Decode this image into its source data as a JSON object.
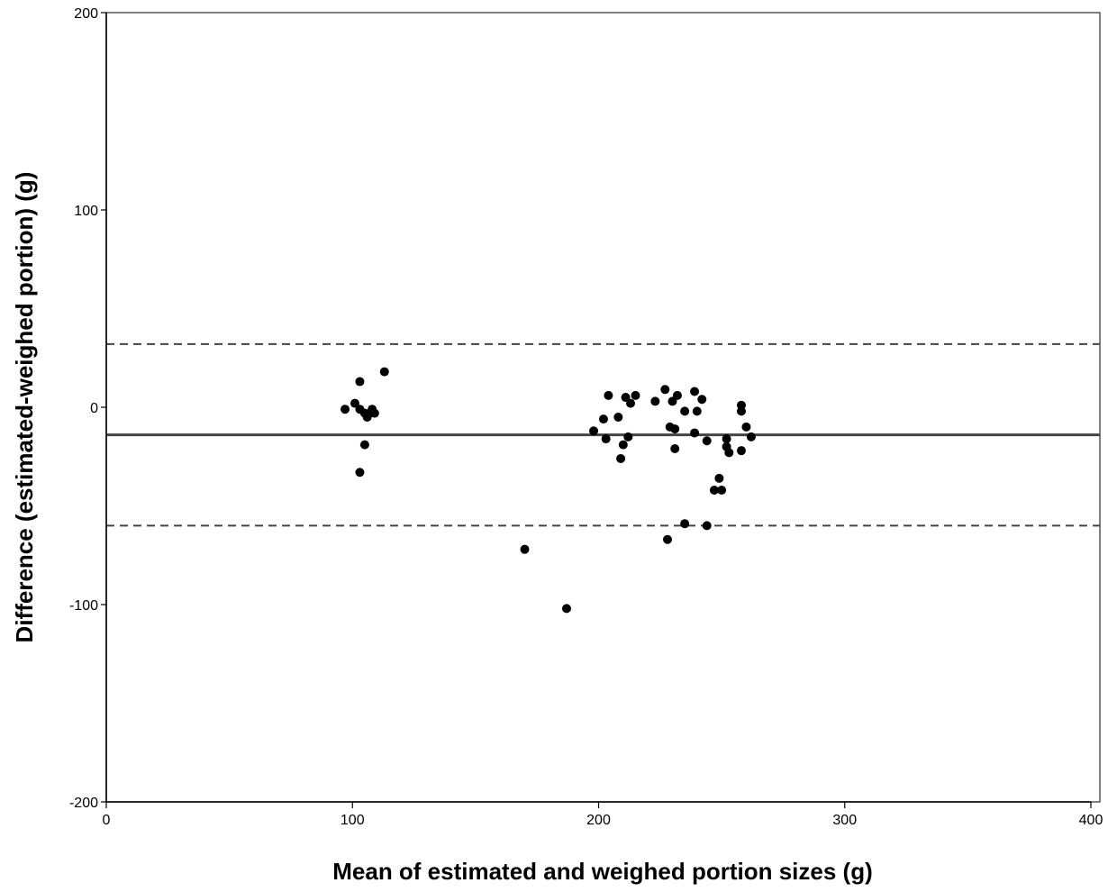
{
  "chart_data": {
    "type": "scatter",
    "title": "",
    "xlabel": "Mean of estimated and weighed portion sizes (g)",
    "ylabel": "Difference (estimated-weighed portion) (g)",
    "xlim": [
      0,
      400
    ],
    "ylim": [
      -200,
      200
    ],
    "x_ticks": [
      "0",
      "100",
      "200",
      "300",
      "400"
    ],
    "y_ticks": [
      "-200",
      "-100",
      "0",
      "100",
      "200"
    ],
    "x_tick_values": [
      0,
      100,
      200,
      300,
      400
    ],
    "y_tick_values": [
      -200,
      -100,
      0,
      100,
      200
    ],
    "grid": false,
    "legend": "none",
    "colors": {
      "points": "#000000",
      "lines": "#444444",
      "axes": "#000000",
      "frame": "#555555"
    },
    "reference_lines": [
      {
        "kind": "mean",
        "style": "solid",
        "y": -14
      },
      {
        "kind": "upper-limit-of-agreement",
        "style": "dashed",
        "y": 32
      },
      {
        "kind": "lower-limit-of-agreement",
        "style": "dashed",
        "y": -60
      }
    ],
    "points": [
      {
        "x": 97,
        "y": -1
      },
      {
        "x": 101,
        "y": 2
      },
      {
        "x": 103,
        "y": 13
      },
      {
        "x": 103,
        "y": -1
      },
      {
        "x": 105,
        "y": -3
      },
      {
        "x": 106,
        "y": -5
      },
      {
        "x": 107,
        "y": -3
      },
      {
        "x": 108,
        "y": -1
      },
      {
        "x": 109,
        "y": -3
      },
      {
        "x": 105,
        "y": -19
      },
      {
        "x": 103,
        "y": -33
      },
      {
        "x": 113,
        "y": 18
      },
      {
        "x": 170,
        "y": -72
      },
      {
        "x": 187,
        "y": -102
      },
      {
        "x": 198,
        "y": -12
      },
      {
        "x": 202,
        "y": -6
      },
      {
        "x": 203,
        "y": -16
      },
      {
        "x": 204,
        "y": 6
      },
      {
        "x": 208,
        "y": -5
      },
      {
        "x": 209,
        "y": -26
      },
      {
        "x": 210,
        "y": -19
      },
      {
        "x": 211,
        "y": 5
      },
      {
        "x": 212,
        "y": -15
      },
      {
        "x": 213,
        "y": 2
      },
      {
        "x": 215,
        "y": 6
      },
      {
        "x": 223,
        "y": 3
      },
      {
        "x": 227,
        "y": 9
      },
      {
        "x": 228,
        "y": -67
      },
      {
        "x": 229,
        "y": -10
      },
      {
        "x": 230,
        "y": 3
      },
      {
        "x": 231,
        "y": -21
      },
      {
        "x": 231,
        "y": -11
      },
      {
        "x": 232,
        "y": 6
      },
      {
        "x": 235,
        "y": -59
      },
      {
        "x": 235,
        "y": -2
      },
      {
        "x": 239,
        "y": 8
      },
      {
        "x": 239,
        "y": -13
      },
      {
        "x": 240,
        "y": -2
      },
      {
        "x": 242,
        "y": 4
      },
      {
        "x": 244,
        "y": -60
      },
      {
        "x": 244,
        "y": -17
      },
      {
        "x": 247,
        "y": -42
      },
      {
        "x": 249,
        "y": -36
      },
      {
        "x": 250,
        "y": -42
      },
      {
        "x": 252,
        "y": -16
      },
      {
        "x": 252,
        "y": -20
      },
      {
        "x": 253,
        "y": -23
      },
      {
        "x": 258,
        "y": 1
      },
      {
        "x": 258,
        "y": -2
      },
      {
        "x": 258,
        "y": -22
      },
      {
        "x": 260,
        "y": -10
      },
      {
        "x": 262,
        "y": -15
      }
    ]
  }
}
